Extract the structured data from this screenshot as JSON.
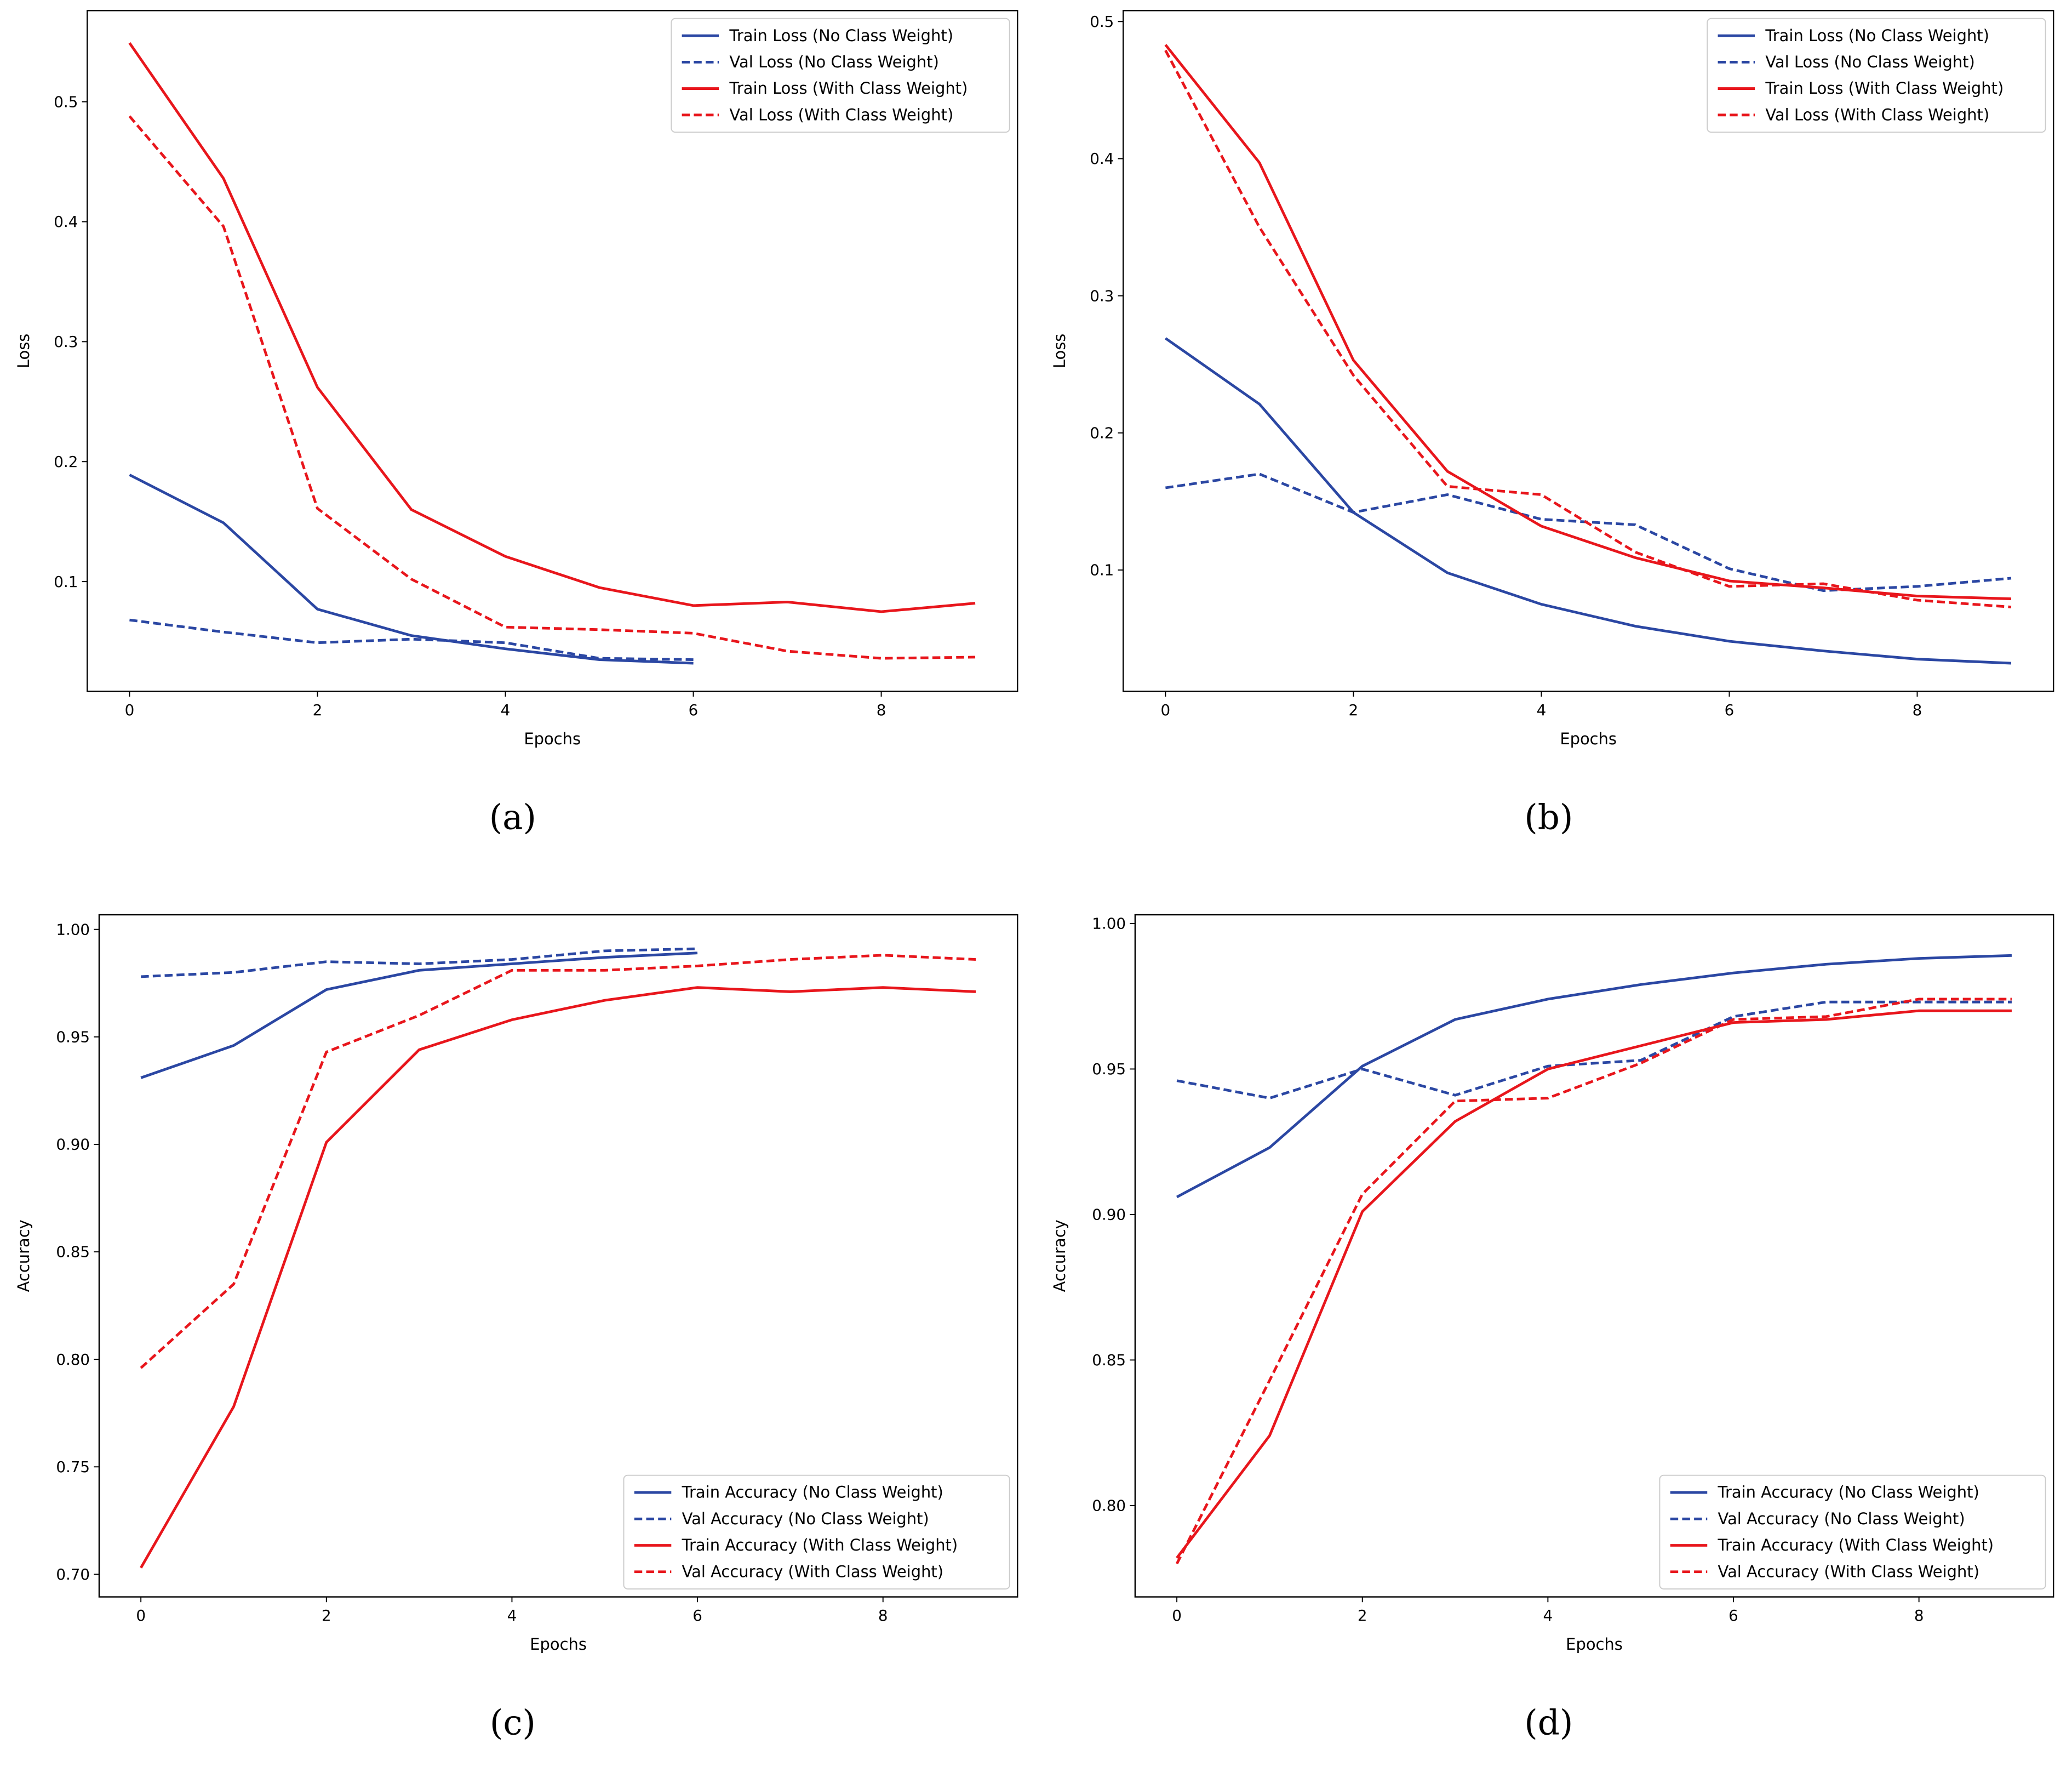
{
  "colors": {
    "no_cw": "#2b47a3",
    "with_cw": "#e8161c"
  },
  "chart_data": [
    {
      "type": "line",
      "caption": "(a)",
      "xlabel": "Epochs",
      "ylabel": "Loss",
      "xlim": [
        -0.45,
        9.45
      ],
      "ylim": [
        0.0085,
        0.576
      ],
      "xticks": [
        0,
        2,
        4,
        6,
        8
      ],
      "yticks": [
        0.1,
        0.2,
        0.3,
        0.4,
        0.5
      ],
      "ytick_labels": [
        "0.1",
        "0.2",
        "0.3",
        "0.4",
        "0.5"
      ],
      "legend_placement": "top-right",
      "series": [
        {
          "name": "Train Loss (No Class Weight)",
          "color": "no_cw",
          "dash": false,
          "values": [
            0.189,
            0.149,
            0.077,
            0.055,
            0.044,
            0.035,
            0.032
          ]
        },
        {
          "name": "Val Loss (No Class Weight)",
          "color": "no_cw",
          "dash": true,
          "values": [
            0.068,
            0.058,
            0.049,
            0.052,
            0.049,
            0.036,
            0.035
          ]
        },
        {
          "name": "Train Loss (With Class Weight)",
          "color": "with_cw",
          "dash": false,
          "values": [
            0.549,
            0.436,
            0.262,
            0.16,
            0.121,
            0.095,
            0.08,
            0.083,
            0.075,
            0.082
          ]
        },
        {
          "name": "Val Loss (With Class Weight)",
          "color": "with_cw",
          "dash": true,
          "values": [
            0.488,
            0.396,
            0.161,
            0.102,
            0.062,
            0.06,
            0.057,
            0.042,
            0.036,
            0.037
          ]
        }
      ]
    },
    {
      "type": "line",
      "caption": "(b)",
      "xlabel": "Epochs",
      "ylabel": "Loss",
      "xlim": [
        -0.45,
        9.45
      ],
      "ylim": [
        0.0115,
        0.508
      ],
      "xticks": [
        0,
        2,
        4,
        6,
        8
      ],
      "yticks": [
        0.1,
        0.2,
        0.3,
        0.4,
        0.5
      ],
      "ytick_labels": [
        "0.1",
        "0.2",
        "0.3",
        "0.4",
        "0.5"
      ],
      "legend_placement": "top-right",
      "series": [
        {
          "name": "Train Loss (No Class Weight)",
          "color": "no_cw",
          "dash": false,
          "values": [
            0.269,
            0.221,
            0.142,
            0.098,
            0.075,
            0.059,
            0.048,
            0.041,
            0.035,
            0.032
          ]
        },
        {
          "name": "Val Loss (No Class Weight)",
          "color": "no_cw",
          "dash": true,
          "values": [
            0.16,
            0.17,
            0.142,
            0.155,
            0.137,
            0.133,
            0.101,
            0.085,
            0.088,
            0.094
          ]
        },
        {
          "name": "Train Loss (With Class Weight)",
          "color": "with_cw",
          "dash": false,
          "values": [
            0.483,
            0.397,
            0.253,
            0.172,
            0.132,
            0.109,
            0.092,
            0.087,
            0.081,
            0.079
          ]
        },
        {
          "name": "Val Loss (With Class Weight)",
          "color": "with_cw",
          "dash": true,
          "values": [
            0.479,
            0.35,
            0.242,
            0.161,
            0.155,
            0.113,
            0.088,
            0.09,
            0.078,
            0.073
          ]
        }
      ]
    },
    {
      "type": "line",
      "caption": "(c)",
      "xlabel": "Epochs",
      "ylabel": "Accuracy",
      "xlim": [
        -0.45,
        9.45
      ],
      "ylim": [
        0.6895,
        1.0068
      ],
      "xticks": [
        0,
        2,
        4,
        6,
        8
      ],
      "yticks": [
        0.7,
        0.75,
        0.8,
        0.85,
        0.9,
        0.95,
        1.0
      ],
      "ytick_labels": [
        "0.70",
        "0.75",
        "0.80",
        "0.85",
        "0.90",
        "0.95",
        "1.00"
      ],
      "legend_placement": "lower-right",
      "series": [
        {
          "name": "Train Accuracy (No Class Weight)",
          "color": "no_cw",
          "dash": false,
          "values": [
            0.931,
            0.946,
            0.972,
            0.981,
            0.984,
            0.987,
            0.989
          ]
        },
        {
          "name": "Val Accuracy (No Class Weight)",
          "color": "no_cw",
          "dash": true,
          "values": [
            0.978,
            0.98,
            0.985,
            0.984,
            0.986,
            0.99,
            0.991
          ]
        },
        {
          "name": "Train Accuracy (With Class Weight)",
          "color": "with_cw",
          "dash": false,
          "values": [
            0.703,
            0.778,
            0.901,
            0.944,
            0.958,
            0.967,
            0.973,
            0.971,
            0.973,
            0.971
          ]
        },
        {
          "name": "Val Accuracy (With Class Weight)",
          "color": "with_cw",
          "dash": true,
          "values": [
            0.796,
            0.835,
            0.943,
            0.96,
            0.981,
            0.981,
            0.983,
            0.986,
            0.988,
            0.986
          ]
        }
      ]
    },
    {
      "type": "line",
      "caption": "(d)",
      "xlabel": "Epochs",
      "ylabel": "Accuracy",
      "xlim": [
        -0.45,
        9.45
      ],
      "ylim": [
        0.7686,
        1.003
      ],
      "xticks": [
        0,
        2,
        4,
        6,
        8
      ],
      "yticks": [
        0.8,
        0.85,
        0.9,
        0.95,
        1.0
      ],
      "ytick_labels": [
        "0.80",
        "0.85",
        "0.90",
        "0.95",
        "1.00"
      ],
      "legend_placement": "lower-right",
      "series": [
        {
          "name": "Train Accuracy (No Class Weight)",
          "color": "no_cw",
          "dash": false,
          "values": [
            0.906,
            0.923,
            0.951,
            0.967,
            0.974,
            0.979,
            0.983,
            0.986,
            0.988,
            0.989
          ]
        },
        {
          "name": "Val Accuracy (No Class Weight)",
          "color": "no_cw",
          "dash": true,
          "values": [
            0.946,
            0.94,
            0.95,
            0.941,
            0.951,
            0.953,
            0.968,
            0.973,
            0.973,
            0.973
          ]
        },
        {
          "name": "Train Accuracy (With Class Weight)",
          "color": "with_cw",
          "dash": false,
          "values": [
            0.782,
            0.824,
            0.901,
            0.932,
            0.95,
            0.958,
            0.966,
            0.967,
            0.97,
            0.97
          ]
        },
        {
          "name": "Val Accuracy (With Class Weight)",
          "color": "with_cw",
          "dash": true,
          "values": [
            0.78,
            0.843,
            0.907,
            0.939,
            0.94,
            0.952,
            0.967,
            0.968,
            0.974,
            0.974
          ]
        }
      ]
    }
  ]
}
